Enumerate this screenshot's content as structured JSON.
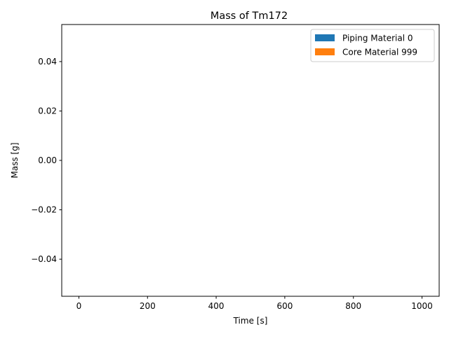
{
  "chart_data": {
    "type": "area",
    "title": "Mass of Tm172",
    "xlabel": "Time [s]",
    "ylabel": "Mass [g]",
    "xlim": [
      -50,
      1050
    ],
    "ylim": [
      -0.055,
      0.055
    ],
    "xticks": [
      0,
      200,
      400,
      600,
      800,
      1000
    ],
    "xtick_labels": [
      "0",
      "200",
      "400",
      "600",
      "800",
      "1000"
    ],
    "yticks": [
      0.04,
      0.02,
      0.0,
      -0.02,
      -0.04
    ],
    "ytick_labels": [
      "0.04",
      "0.02",
      "0.00",
      "−0.02",
      "−0.04"
    ],
    "grid": false,
    "legend_position": "top-right",
    "x": [
      0,
      1000
    ],
    "series": [
      {
        "name": "Piping Material 0",
        "color": "#1f77b4",
        "values": [
          0,
          0
        ]
      },
      {
        "name": "Core Material 999",
        "color": "#ff7f0e",
        "values": [
          0,
          0
        ]
      }
    ]
  }
}
